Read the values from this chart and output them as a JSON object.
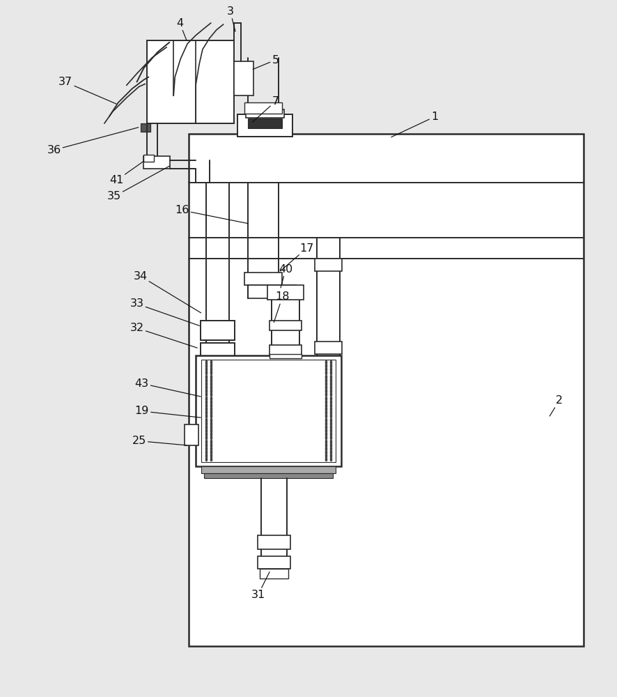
{
  "bg_color": "#e8e8e8",
  "line_color": "#2a2a2a",
  "lw": 1.4,
  "fig_width": 8.86,
  "fig_height": 10.0
}
